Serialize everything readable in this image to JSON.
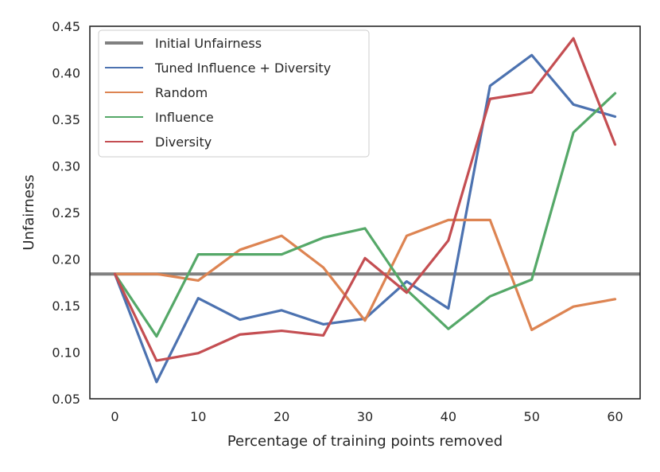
{
  "chart_data": {
    "type": "line",
    "title": "",
    "xlabel": "Percentage of training points removed",
    "ylabel": "Unfairness",
    "xlim": [
      -3,
      63
    ],
    "ylim": [
      0.05,
      0.45
    ],
    "xticks": [
      0,
      10,
      20,
      30,
      40,
      50,
      60
    ],
    "xtick_labels": [
      "0",
      "10",
      "20",
      "30",
      "40",
      "50",
      "60"
    ],
    "yticks": [
      0.05,
      0.1,
      0.15,
      0.2,
      0.25,
      0.3,
      0.35,
      0.4,
      0.45
    ],
    "ytick_labels": [
      "0.05",
      "0.10",
      "0.15",
      "0.20",
      "0.25",
      "0.30",
      "0.35",
      "0.40",
      "0.45"
    ],
    "grid": false,
    "legend_position": "top-left",
    "reference_line": {
      "name": "Initial Unfairness",
      "y": 0.184,
      "color": "#808080"
    },
    "x": [
      0,
      5,
      10,
      15,
      20,
      25,
      30,
      35,
      40,
      45,
      50,
      55,
      60
    ],
    "series": [
      {
        "name": "Tuned Influence + Diversity",
        "color": "#4c72b0",
        "values": [
          0.184,
          0.068,
          0.158,
          0.135,
          0.145,
          0.13,
          0.136,
          0.176,
          0.147,
          0.386,
          0.419,
          0.366,
          0.353
        ]
      },
      {
        "name": "Random",
        "color": "#dd8452",
        "values": [
          0.184,
          0.184,
          0.177,
          0.21,
          0.225,
          0.191,
          0.134,
          0.225,
          0.242,
          0.242,
          0.124,
          0.149,
          0.157
        ]
      },
      {
        "name": "Influence",
        "color": "#55a868",
        "values": [
          0.184,
          0.117,
          0.205,
          0.205,
          0.205,
          0.223,
          0.233,
          0.167,
          0.125,
          0.16,
          0.178,
          0.336,
          0.378
        ]
      },
      {
        "name": "Diversity",
        "color": "#c44e52",
        "values": [
          0.184,
          0.091,
          0.099,
          0.119,
          0.123,
          0.118,
          0.201,
          0.164,
          0.22,
          0.372,
          0.379,
          0.437,
          0.323
        ]
      }
    ]
  }
}
